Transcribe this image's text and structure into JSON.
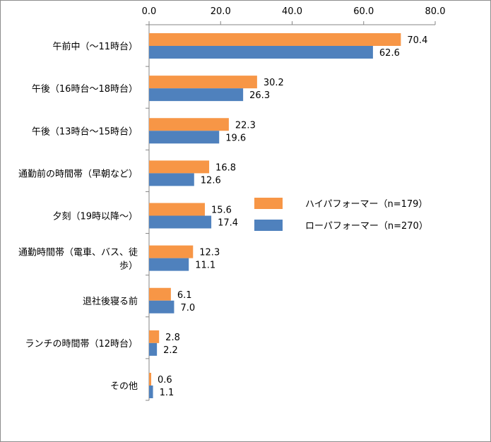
{
  "chart_data": {
    "type": "bar",
    "orientation": "horizontal",
    "categories": [
      [
        "午前中（～11時台）"
      ],
      [
        "午後（16時台～18時台）"
      ],
      [
        "午後（13時台～15時台）"
      ],
      [
        "通勤前の時間帯（早朝など）"
      ],
      [
        "夕刻（19時以降～）"
      ],
      [
        "通勤時間帯（電車、バス、徒",
        "歩）"
      ],
      [
        "退社後寝る前"
      ],
      [
        "ランチの時間帯（12時台）"
      ],
      [
        "その他"
      ]
    ],
    "series": [
      {
        "name": "ハイパフォーマー（n=179）",
        "color": "#f79646",
        "values": [
          70.4,
          30.2,
          22.3,
          16.8,
          15.6,
          12.3,
          6.1,
          2.8,
          0.6
        ],
        "labels": [
          "70.4",
          "30.2",
          "22.3",
          "16.8",
          "15.6",
          "12.3",
          "6.1",
          "2.8",
          "0.6"
        ]
      },
      {
        "name": "ローパフォーマー（n=270）",
        "color": "#4f81bd",
        "values": [
          62.6,
          26.3,
          19.6,
          12.6,
          17.4,
          11.1,
          7.0,
          2.2,
          1.1
        ],
        "labels": [
          "62.6",
          "26.3",
          "19.6",
          "12.6",
          "17.4",
          "11.1",
          "7.0",
          "2.2",
          "1.1"
        ]
      }
    ],
    "xlim": [
      0,
      80
    ],
    "x_ticks": [
      0,
      20,
      40,
      60,
      80
    ],
    "x_tick_labels": [
      "0.0",
      "20.0",
      "40.0",
      "60.0",
      "80.0"
    ],
    "x_axis_position": "top",
    "grid": false,
    "legend_position": "right",
    "title": "",
    "xlabel": "",
    "ylabel": ""
  }
}
